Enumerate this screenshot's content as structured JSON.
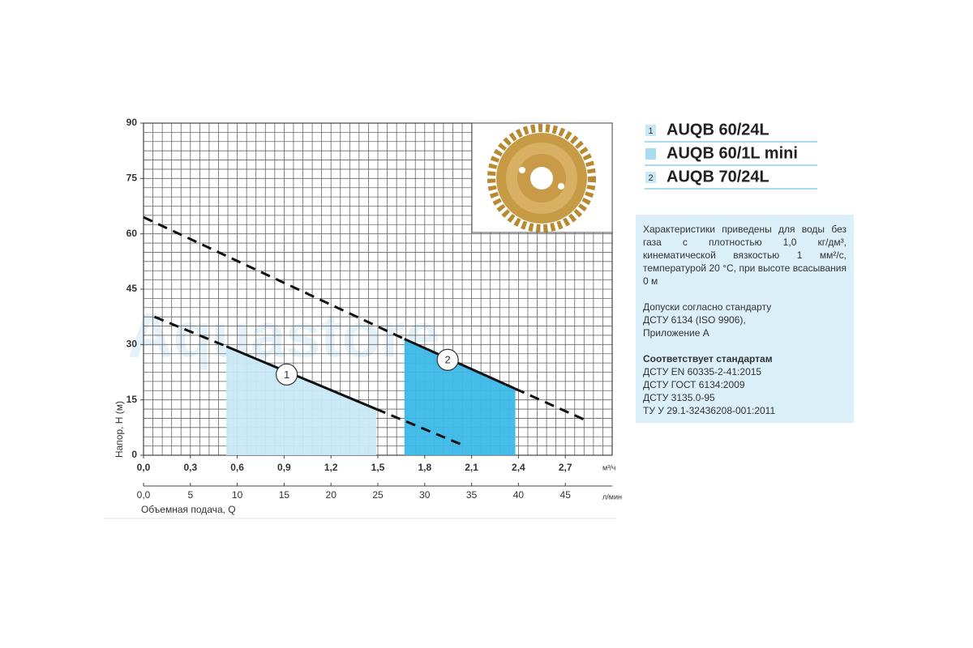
{
  "chart_data": {
    "type": "pump-curve",
    "y_label": "Напор, H (м)",
    "x_label": "Объемная подача, Q",
    "x_unit": "м³/ч",
    "x2_unit": "л/мин",
    "watermark": "Aquastore",
    "xlim": [
      0,
      3.0
    ],
    "xticks": [
      {
        "value": 0,
        "label": "0,0"
      },
      {
        "value": 0.3,
        "label": "0,3"
      },
      {
        "value": 0.6,
        "label": "0,6"
      },
      {
        "value": 0.9,
        "label": "0,9"
      },
      {
        "value": 1.2,
        "label": "1,2"
      },
      {
        "value": 1.5,
        "label": "1,5"
      },
      {
        "value": 1.8,
        "label": "1,8"
      },
      {
        "value": 2.1,
        "label": "2,1"
      },
      {
        "value": 2.4,
        "label": "2,4"
      },
      {
        "value": 2.7,
        "label": "2,7"
      }
    ],
    "x2lim": [
      0,
      50
    ],
    "x2ticks": [
      {
        "value": 0,
        "label": "0,0"
      },
      5,
      10,
      15,
      20,
      25,
      30,
      35,
      40,
      45
    ],
    "ylim": [
      0,
      90
    ],
    "yticks": [
      0,
      15,
      30,
      45,
      60,
      75,
      90
    ],
    "grid": true,
    "minor_grid": {
      "x": 0.06,
      "y": 2.5
    },
    "series": [
      {
        "label": "1",
        "color": "#c9e8f7",
        "x": [
          0.07,
          0.53,
          1.49,
          2.03
        ],
        "values": [
          37.5,
          29.5,
          12.5,
          3
        ]
      },
      {
        "label": "2",
        "color": "#3cb9e7",
        "x": [
          0,
          1.67,
          2.38,
          2.83
        ],
        "values": [
          64.5,
          31.5,
          18,
          9.5
        ]
      }
    ],
    "legend": [
      {
        "marker": "1",
        "name": "AUQB 60/24L"
      },
      {
        "name": "AUQB 60/1L mini"
      },
      {
        "marker": "2",
        "name": "AUQB 70/24L"
      }
    ]
  },
  "notes": {
    "text1": "Характеристики приведены для воды без газа с плотностью 1,0 кг/дм³, кинематической вязкостью 1 мм²/с, температурой 20 °С, при высоте всасывания 0 м",
    "text2": [
      "Допуски согласно стандарту",
      "ДСТУ 6134 (ISO 9906),",
      "Приложение А"
    ],
    "heading": "Соответствует стандартам",
    "standards": [
      "ДСТУ EN 60335-2-41:2015",
      "ДСТУ ГОСТ 6134:2009",
      "ДСТУ 3135.0-95",
      "ТУ У 29.1-32436208-001:2011"
    ]
  }
}
